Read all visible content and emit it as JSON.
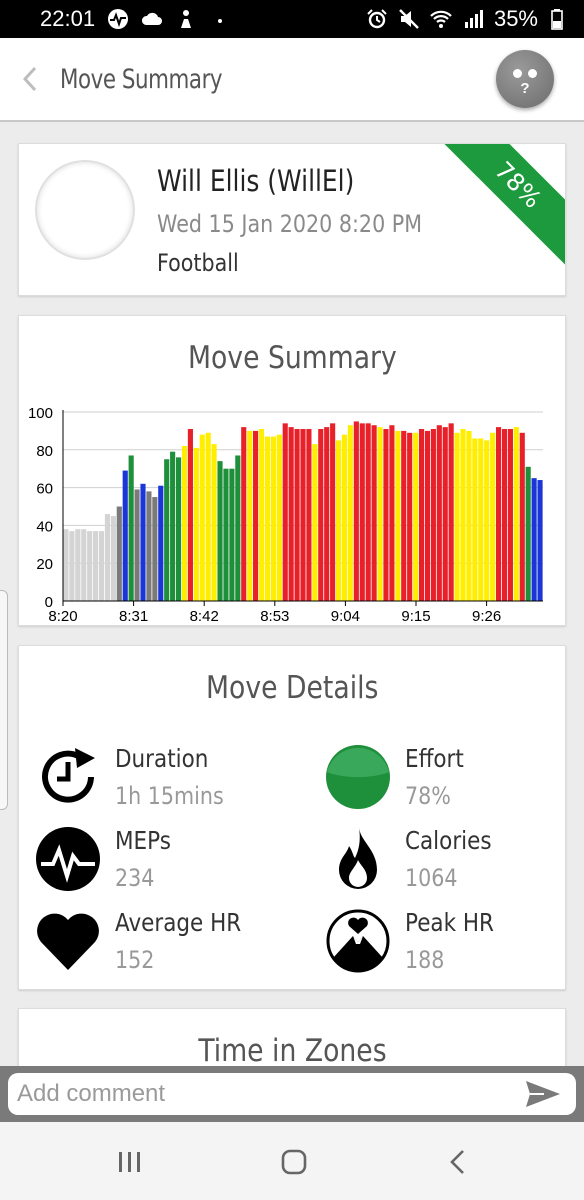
{
  "status_bar": {
    "time": "22:01",
    "battery": "35%",
    "icons": [
      "activity-icon",
      "cloud-icon",
      "person-icon",
      "dot-icon",
      "alarm-icon",
      "mute-icon",
      "wifi-icon",
      "signal-icon",
      "battery-icon"
    ]
  },
  "app_bar": {
    "title": "Move Summary",
    "help_label": "?"
  },
  "user_card": {
    "name": "Will Ellis (WillEl)",
    "datetime": "Wed 15 Jan 2020 8:20 PM",
    "sport": "Football",
    "effort_badge": "78%",
    "badge_color": "#1e9a3e"
  },
  "summary_card": {
    "title": "Move Summary"
  },
  "chart_data": {
    "type": "bar",
    "title": "Move Summary",
    "ylim": [
      0,
      100
    ],
    "yticks": [
      0,
      20,
      40,
      60,
      80,
      100
    ],
    "xtick_labels": [
      "8:20",
      "8:31",
      "8:42",
      "8:53",
      "9:04",
      "9:15",
      "9:26"
    ],
    "grid": true,
    "zone_colors": {
      "grey_light": "#d4d4d4",
      "grey_dark": "#7a7a7a",
      "blue": "#1a35d8",
      "green": "#1e8f3a",
      "yellow": "#ffee00",
      "red": "#e8202a"
    },
    "values": [
      38,
      37,
      38,
      38,
      37,
      37,
      37,
      46,
      45,
      50,
      69,
      77,
      59,
      62,
      58,
      55,
      61,
      75,
      79,
      76,
      82,
      91,
      81,
      88,
      89,
      83,
      74,
      70,
      70,
      77,
      92,
      90,
      90,
      91,
      87,
      87,
      88,
      94,
      92,
      91,
      91,
      91,
      83,
      91,
      92,
      94,
      85,
      88,
      93,
      95,
      94,
      94,
      93,
      92,
      91,
      93,
      90,
      90,
      89,
      89,
      91,
      90,
      91,
      93,
      92,
      94,
      89,
      91,
      90,
      86,
      86,
      85,
      89,
      92,
      91,
      91,
      92,
      89,
      71,
      65,
      64
    ],
    "zones": [
      "grey_light",
      "grey_light",
      "grey_light",
      "grey_light",
      "grey_light",
      "grey_light",
      "grey_light",
      "grey_light",
      "grey_light",
      "grey_dark",
      "blue",
      "green",
      "grey_dark",
      "blue",
      "grey_dark",
      "grey_dark",
      "blue",
      "green",
      "green",
      "green",
      "yellow",
      "red",
      "yellow",
      "yellow",
      "yellow",
      "yellow",
      "green",
      "green",
      "green",
      "green",
      "red",
      "yellow",
      "red",
      "yellow",
      "yellow",
      "yellow",
      "yellow",
      "red",
      "red",
      "red",
      "red",
      "red",
      "yellow",
      "red",
      "red",
      "red",
      "yellow",
      "yellow",
      "yellow",
      "red",
      "red",
      "red",
      "red",
      "yellow",
      "red",
      "red",
      "yellow",
      "red",
      "red",
      "yellow",
      "red",
      "red",
      "red",
      "red",
      "red",
      "red",
      "yellow",
      "yellow",
      "yellow",
      "yellow",
      "yellow",
      "yellow",
      "yellow",
      "red",
      "red",
      "red",
      "yellow",
      "red",
      "green",
      "blue",
      "blue"
    ]
  },
  "details": {
    "title": "Move Details",
    "items": [
      {
        "label": "Duration",
        "value": "1h 15mins",
        "icon": "duration-icon"
      },
      {
        "label": "Effort",
        "value": "78%",
        "icon": "effort-icon",
        "color": "#1e8f3a"
      },
      {
        "label": "MEPs",
        "value": "234",
        "icon": "meps-icon"
      },
      {
        "label": "Calories",
        "value": "1064",
        "icon": "flame-icon"
      },
      {
        "label": "Average HR",
        "value": "152",
        "icon": "heart-icon"
      },
      {
        "label": "Peak HR",
        "value": "188",
        "icon": "peak-heart-icon"
      }
    ]
  },
  "zones_card": {
    "title": "Time in Zones"
  },
  "comment": {
    "placeholder": "Add comment"
  },
  "nav": {
    "recents": "recents-icon",
    "home": "home-icon",
    "back": "back-icon"
  }
}
